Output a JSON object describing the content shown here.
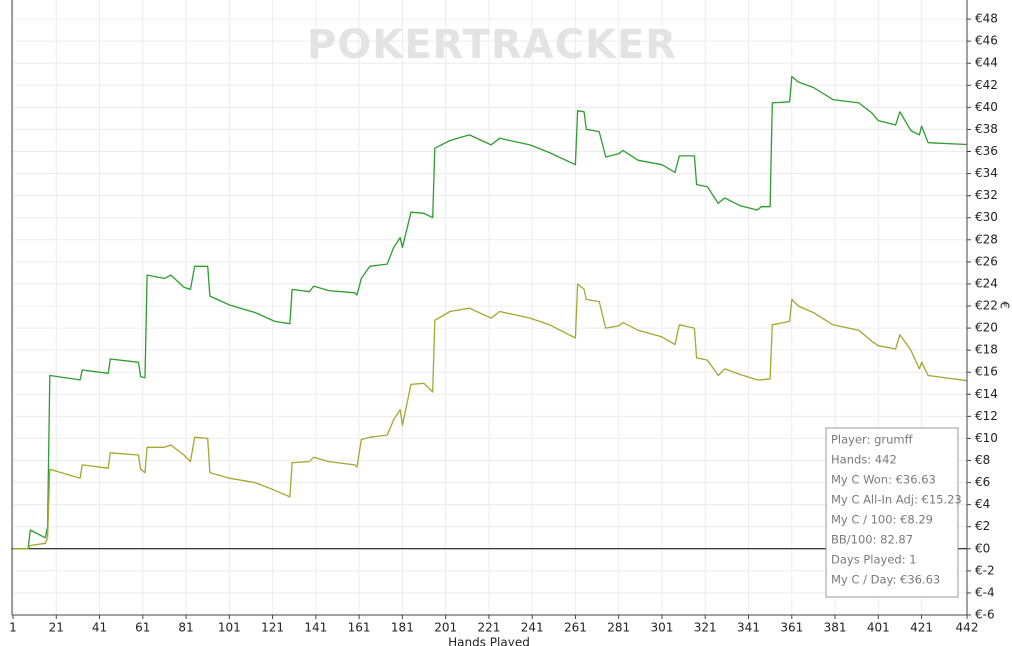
{
  "chart_data": {
    "type": "line",
    "watermark": "POKERTRACKER",
    "x_label": "Hands Played",
    "y_label": "€",
    "x": [
      1,
      8,
      9,
      16,
      17,
      18,
      32,
      33,
      45,
      46,
      59,
      60,
      62,
      63,
      71,
      74,
      80,
      83,
      85,
      91,
      92,
      101,
      113,
      122,
      129,
      130,
      138,
      140,
      147,
      159,
      160,
      162,
      166,
      174,
      177,
      180,
      181,
      185,
      191,
      195,
      196,
      203,
      212,
      222,
      226,
      240,
      249,
      261,
      262,
      265,
      266,
      272,
      275,
      281,
      283,
      290,
      301,
      307,
      309,
      316,
      317,
      322,
      327,
      330,
      337,
      345,
      347,
      351,
      352,
      360,
      361,
      364,
      371,
      380,
      392,
      398,
      401,
      409,
      411,
      416,
      420,
      421,
      424,
      442
    ],
    "series": [
      {
        "color": "#2e9c2e",
        "values": [
          0,
          0,
          1.7,
          1.0,
          2.0,
          15.7,
          15.3,
          16.2,
          15.9,
          17.2,
          16.9,
          15.6,
          15.5,
          24.8,
          24.5,
          24.8,
          23.7,
          23.5,
          25.6,
          25.6,
          22.9,
          22.1,
          21.4,
          20.6,
          20.4,
          23.5,
          23.3,
          23.8,
          23.4,
          23.2,
          23.0,
          24.5,
          25.6,
          25.8,
          27.3,
          28.2,
          27.3,
          30.5,
          30.4,
          30.0,
          36.3,
          37.0,
          37.5,
          36.6,
          37.2,
          36.6,
          35.9,
          34.8,
          39.7,
          39.6,
          38.0,
          37.8,
          35.5,
          35.8,
          36.1,
          35.2,
          34.8,
          34.1,
          35.6,
          35.6,
          33.0,
          32.8,
          31.3,
          31.8,
          31.1,
          30.7,
          31.0,
          31.0,
          40.4,
          40.5,
          42.8,
          42.3,
          41.8,
          40.7,
          40.4,
          39.5,
          38.8,
          38.4,
          39.6,
          37.9,
          37.5,
          38.3,
          36.8,
          36.63
        ]
      },
      {
        "color": "#a6a632",
        "values": [
          0,
          0,
          0.3,
          0.5,
          1.0,
          7.2,
          6.4,
          7.6,
          7.3,
          8.7,
          8.5,
          7.2,
          6.9,
          9.2,
          9.2,
          9.4,
          8.5,
          7.9,
          10.1,
          10.0,
          6.9,
          6.4,
          6.0,
          5.3,
          4.7,
          7.8,
          7.9,
          8.3,
          7.9,
          7.6,
          7.4,
          9.9,
          10.1,
          10.3,
          11.7,
          12.6,
          11.2,
          14.9,
          15.0,
          14.2,
          20.7,
          21.5,
          21.8,
          20.9,
          21.5,
          20.9,
          20.3,
          19.1,
          24.0,
          23.5,
          22.6,
          22.4,
          20.0,
          20.2,
          20.5,
          19.8,
          19.2,
          18.5,
          20.3,
          20.0,
          17.3,
          17.1,
          15.7,
          16.3,
          15.8,
          15.3,
          15.3,
          15.4,
          20.3,
          20.6,
          22.6,
          22.0,
          21.4,
          20.3,
          19.8,
          18.8,
          18.4,
          18.1,
          19.4,
          18.0,
          16.3,
          16.9,
          15.7,
          15.23
        ]
      }
    ],
    "xlim": [
      1,
      442
    ],
    "xticks": [
      1,
      21,
      41,
      61,
      81,
      101,
      121,
      141,
      161,
      181,
      201,
      221,
      241,
      261,
      281,
      301,
      321,
      341,
      361,
      381,
      401,
      421,
      442
    ],
    "ylim": [
      -6,
      50
    ],
    "yticks": [
      {
        "value": -6,
        "label": "€-6"
      },
      {
        "value": -4,
        "label": "€-4"
      },
      {
        "value": -2,
        "label": "€-2"
      },
      {
        "value": 0,
        "label": "€0"
      },
      {
        "value": 2,
        "label": "€2"
      },
      {
        "value": 4,
        "label": "€4"
      },
      {
        "value": 6,
        "label": "€6"
      },
      {
        "value": 8,
        "label": "€8"
      },
      {
        "value": 10,
        "label": "€10"
      },
      {
        "value": 12,
        "label": "€12"
      },
      {
        "value": 14,
        "label": "€14"
      },
      {
        "value": 16,
        "label": "€16"
      },
      {
        "value": 18,
        "label": "€18"
      },
      {
        "value": 20,
        "label": "€20"
      },
      {
        "value": 22,
        "label": "€22"
      },
      {
        "value": 24,
        "label": "€24"
      },
      {
        "value": 26,
        "label": "€26"
      },
      {
        "value": 28,
        "label": "€28"
      },
      {
        "value": 30,
        "label": "€30"
      },
      {
        "value": 32,
        "label": "€32"
      },
      {
        "value": 34,
        "label": "€34"
      },
      {
        "value": 36,
        "label": "€36"
      },
      {
        "value": 38,
        "label": "€38"
      },
      {
        "value": 40,
        "label": "€40"
      },
      {
        "value": 42,
        "label": "€42"
      },
      {
        "value": 44,
        "label": "€44"
      },
      {
        "value": 46,
        "label": "€46"
      },
      {
        "value": 48,
        "label": "€48"
      }
    ],
    "grid": true,
    "info_box": [
      "Player: grumff",
      "Hands: 442",
      "My C Won: €36.63",
      "My C All-In Adj: €15.23",
      "My C / 100: €8.29",
      "BB/100: 82.87",
      "Days Played: 1",
      "My C / Day: €36.63"
    ]
  }
}
